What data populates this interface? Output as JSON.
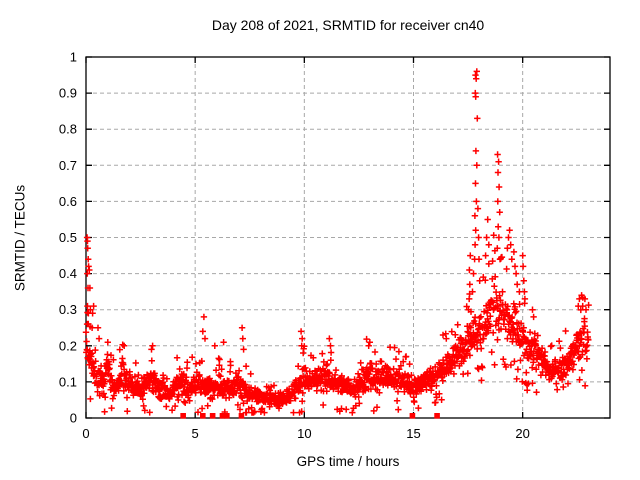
{
  "chart_data": {
    "type": "scatter",
    "title": "Day 208 of 2021, SRMTID for receiver cn40",
    "xlabel": "GPS time / hours",
    "ylabel": "SRMTID / TECUs",
    "xlim": [
      0,
      24
    ],
    "ylim": [
      0,
      1
    ],
    "xticks": [
      0,
      5,
      10,
      15,
      20
    ],
    "xtick_labels": [
      "0",
      "5",
      "10",
      "15",
      "20"
    ],
    "yticks": [
      0,
      0.1,
      0.2,
      0.3,
      0.4,
      0.5,
      0.6,
      0.7,
      0.8,
      0.9,
      1
    ],
    "ytick_labels": [
      "0",
      "0.1",
      "0.2",
      "0.3",
      "0.4",
      "0.5",
      "0.6",
      "0.7",
      "0.8",
      "0.9",
      "1"
    ],
    "grid": true,
    "grid_color": "#a8a8a8",
    "marker": "+",
    "marker_color": "#ff0000",
    "legend": "none",
    "series_name": "SRMTID",
    "sampling": {
      "start_hour": 0.0,
      "end_hour": 23.03,
      "step_hours": 0.01333
    },
    "band_envelope": [
      [
        0.0,
        0.13,
        0.3
      ],
      [
        0.15,
        0.1,
        0.24
      ],
      [
        0.4,
        0.06,
        0.18
      ],
      [
        0.7,
        0.05,
        0.14
      ],
      [
        1.0,
        0.07,
        0.2
      ],
      [
        1.3,
        0.04,
        0.12
      ],
      [
        1.7,
        0.06,
        0.18
      ],
      [
        2.1,
        0.04,
        0.13
      ],
      [
        2.5,
        0.04,
        0.11
      ],
      [
        3.0,
        0.05,
        0.17
      ],
      [
        3.4,
        0.04,
        0.11
      ],
      [
        3.8,
        0.03,
        0.1
      ],
      [
        4.3,
        0.06,
        0.15
      ],
      [
        4.7,
        0.04,
        0.12
      ],
      [
        5.1,
        0.05,
        0.15
      ],
      [
        5.5,
        0.04,
        0.13
      ],
      [
        6.0,
        0.04,
        0.14
      ],
      [
        6.5,
        0.04,
        0.12
      ],
      [
        7.0,
        0.05,
        0.14
      ],
      [
        7.5,
        0.03,
        0.1
      ],
      [
        8.0,
        0.03,
        0.09
      ],
      [
        8.5,
        0.02,
        0.08
      ],
      [
        9.0,
        0.02,
        0.08
      ],
      [
        9.4,
        0.03,
        0.1
      ],
      [
        9.9,
        0.05,
        0.16
      ],
      [
        10.4,
        0.06,
        0.15
      ],
      [
        11.0,
        0.06,
        0.17
      ],
      [
        11.4,
        0.05,
        0.14
      ],
      [
        11.8,
        0.05,
        0.13
      ],
      [
        12.2,
        0.04,
        0.12
      ],
      [
        12.6,
        0.05,
        0.15
      ],
      [
        13.0,
        0.06,
        0.18
      ],
      [
        13.4,
        0.06,
        0.15
      ],
      [
        13.8,
        0.07,
        0.16
      ],
      [
        14.2,
        0.06,
        0.16
      ],
      [
        14.6,
        0.06,
        0.14
      ],
      [
        15.0,
        0.05,
        0.13
      ],
      [
        15.4,
        0.06,
        0.13
      ],
      [
        15.8,
        0.06,
        0.15
      ],
      [
        16.2,
        0.08,
        0.17
      ],
      [
        16.6,
        0.1,
        0.2
      ],
      [
        17.0,
        0.12,
        0.23
      ],
      [
        17.4,
        0.14,
        0.27
      ],
      [
        17.8,
        0.15,
        0.3
      ],
      [
        18.1,
        0.16,
        0.33
      ],
      [
        18.4,
        0.18,
        0.38
      ],
      [
        18.7,
        0.2,
        0.42
      ],
      [
        19.0,
        0.2,
        0.4
      ],
      [
        19.3,
        0.18,
        0.36
      ],
      [
        19.6,
        0.16,
        0.33
      ],
      [
        20.0,
        0.15,
        0.3
      ],
      [
        20.4,
        0.12,
        0.26
      ],
      [
        20.8,
        0.11,
        0.22
      ],
      [
        21.2,
        0.09,
        0.18
      ],
      [
        21.6,
        0.09,
        0.17
      ],
      [
        22.0,
        0.1,
        0.2
      ],
      [
        22.4,
        0.13,
        0.26
      ],
      [
        22.7,
        0.15,
        0.3
      ],
      [
        23.03,
        0.14,
        0.28
      ]
    ],
    "outlier_points": [
      [
        0.05,
        0.5
      ],
      [
        0.07,
        0.49
      ],
      [
        0.08,
        0.47
      ],
      [
        0.1,
        0.44
      ],
      [
        0.12,
        0.42
      ],
      [
        0.06,
        0.4
      ],
      [
        0.15,
        0.41
      ],
      [
        0.09,
        0.36
      ],
      [
        0.18,
        0.36
      ],
      [
        0.07,
        0.31
      ],
      [
        0.2,
        0.3
      ],
      [
        0.11,
        0.29
      ],
      [
        0.05,
        0.26
      ],
      [
        0.3,
        0.29
      ],
      [
        0.35,
        0.31
      ],
      [
        0.28,
        0.25
      ],
      [
        0.55,
        0.25
      ],
      [
        0.6,
        0.22
      ],
      [
        1.0,
        0.21
      ],
      [
        1.75,
        0.2
      ],
      [
        3.0,
        0.19
      ],
      [
        3.05,
        0.2
      ],
      [
        5.35,
        0.24
      ],
      [
        5.4,
        0.28
      ],
      [
        5.45,
        0.22
      ],
      [
        5.9,
        0.2
      ],
      [
        6.3,
        0.21
      ],
      [
        7.15,
        0.25
      ],
      [
        7.18,
        0.22
      ],
      [
        7.22,
        0.19
      ],
      [
        9.85,
        0.24
      ],
      [
        9.9,
        0.22
      ],
      [
        9.88,
        0.2
      ],
      [
        9.95,
        0.18
      ],
      [
        11.15,
        0.22
      ],
      [
        11.2,
        0.2
      ],
      [
        12.95,
        0.2
      ],
      [
        13.0,
        0.21
      ],
      [
        16.35,
        0.23
      ],
      [
        16.5,
        0.22
      ],
      [
        17.52,
        0.3
      ],
      [
        17.55,
        0.33
      ],
      [
        17.58,
        0.37
      ],
      [
        17.56,
        0.41
      ],
      [
        17.6,
        0.45
      ],
      [
        17.7,
        0.35
      ],
      [
        17.75,
        0.4
      ],
      [
        17.8,
        0.44
      ],
      [
        17.82,
        0.48
      ],
      [
        17.85,
        0.52
      ],
      [
        17.81,
        0.56
      ],
      [
        17.88,
        0.6
      ],
      [
        17.84,
        0.65
      ],
      [
        17.9,
        0.7
      ],
      [
        17.86,
        0.74
      ],
      [
        17.92,
        0.83
      ],
      [
        17.85,
        0.89
      ],
      [
        17.83,
        0.9
      ],
      [
        17.87,
        0.94
      ],
      [
        17.84,
        0.95
      ],
      [
        17.9,
        0.96
      ],
      [
        17.95,
        0.58
      ],
      [
        17.98,
        0.5
      ],
      [
        18.0,
        0.44
      ],
      [
        18.03,
        0.38
      ],
      [
        18.3,
        0.45
      ],
      [
        18.35,
        0.5
      ],
      [
        18.4,
        0.55
      ],
      [
        18.45,
        0.48
      ],
      [
        18.85,
        0.73
      ],
      [
        18.9,
        0.71
      ],
      [
        18.87,
        0.68
      ],
      [
        18.92,
        0.64
      ],
      [
        18.86,
        0.6
      ],
      [
        18.95,
        0.57
      ],
      [
        18.88,
        0.53
      ],
      [
        18.91,
        0.5
      ],
      [
        18.84,
        0.47
      ],
      [
        18.96,
        0.44
      ],
      [
        19.3,
        0.47
      ],
      [
        19.35,
        0.5
      ],
      [
        19.4,
        0.52
      ],
      [
        19.45,
        0.48
      ],
      [
        19.5,
        0.44
      ],
      [
        19.6,
        0.46
      ],
      [
        19.65,
        0.42
      ],
      [
        19.7,
        0.4
      ],
      [
        19.75,
        0.37
      ],
      [
        19.85,
        0.35
      ],
      [
        20.0,
        0.45
      ],
      [
        20.02,
        0.42
      ],
      [
        20.05,
        0.38
      ],
      [
        20.08,
        0.35
      ],
      [
        20.1,
        0.33
      ],
      [
        20.45,
        0.3
      ],
      [
        20.5,
        0.28
      ],
      [
        22.55,
        0.31
      ],
      [
        22.6,
        0.33
      ],
      [
        22.7,
        0.34
      ],
      [
        22.75,
        0.31
      ],
      [
        22.85,
        0.33
      ],
      [
        22.9,
        0.3
      ]
    ],
    "zero_flag_times": [
      4.45,
      5.35,
      5.8,
      6.25,
      6.45,
      7.12,
      14.95,
      16.08
    ]
  }
}
